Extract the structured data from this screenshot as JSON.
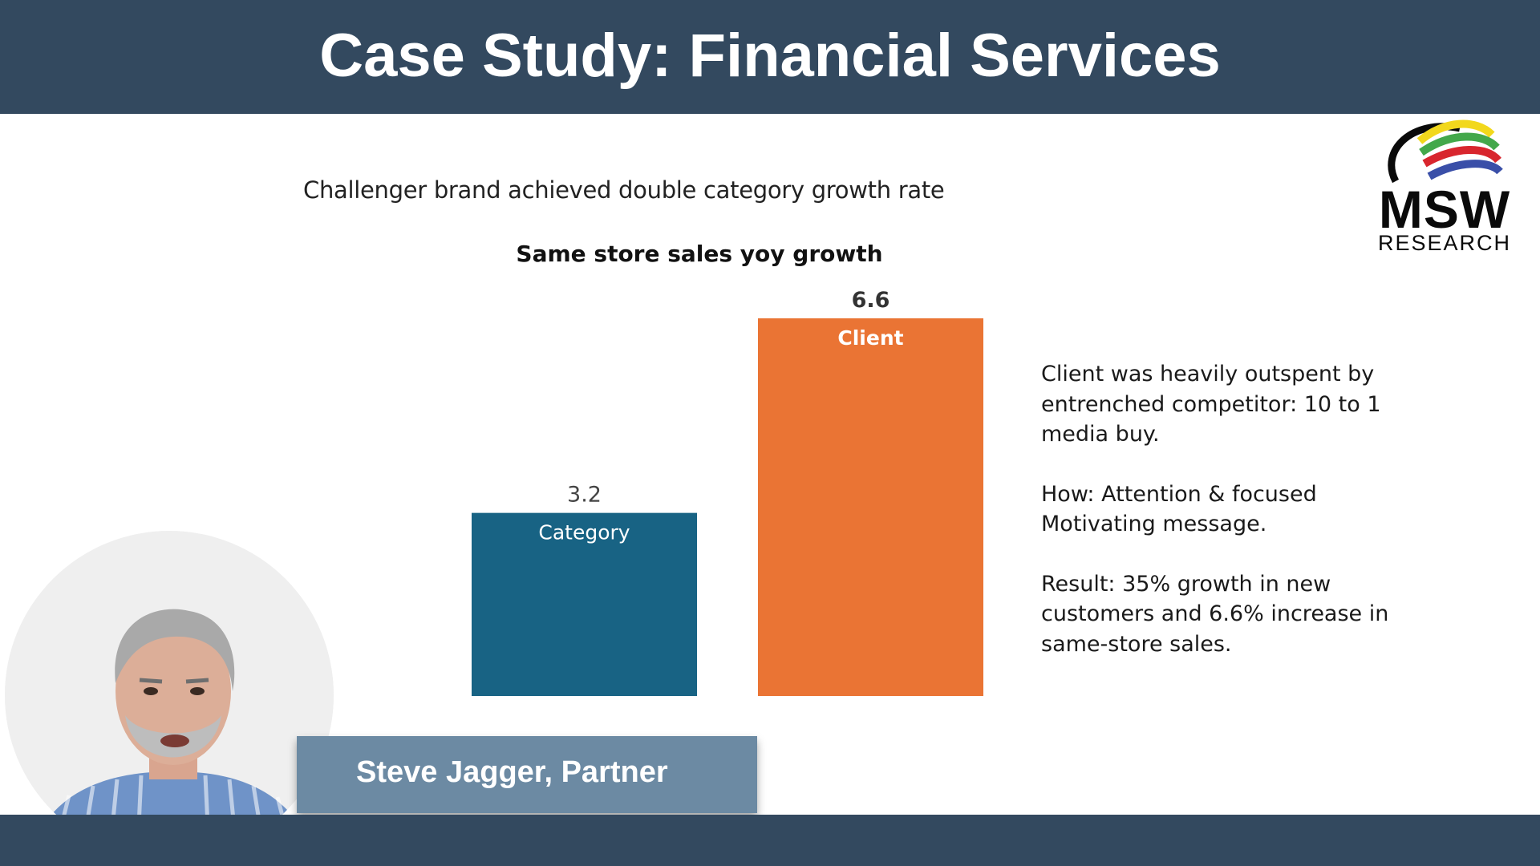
{
  "slide": {
    "title": "Case Study: Financial Services",
    "subtitle": "Challenger brand achieved double category growth rate"
  },
  "chart_data": {
    "type": "bar",
    "title": "Same store sales yoy growth",
    "categories": [
      "Category",
      "Client"
    ],
    "values": [
      3.2,
      6.6
    ],
    "value_labels": [
      "3.2",
      "6.6"
    ],
    "colors": [
      "#186384",
      "#ea7434"
    ],
    "ylim": [
      0,
      6.6
    ],
    "grid": false,
    "legend": "none"
  },
  "notes": [
    "Client was heavily outspent by entrenched competitor: 10 to 1 media buy.",
    "How: Attention & focused Motivating message.",
    "Result: 35% growth in new customers and 6.6% increase in same-store sales."
  ],
  "logo": {
    "name": "MSW",
    "sub": "RESEARCH"
  },
  "presenter": {
    "name_label": "Steve Jagger, Partner"
  },
  "colors": {
    "header_band": "#33495f",
    "name_bar": "#6c8aa3",
    "category_bar": "#186384",
    "client_bar": "#ea7434"
  }
}
